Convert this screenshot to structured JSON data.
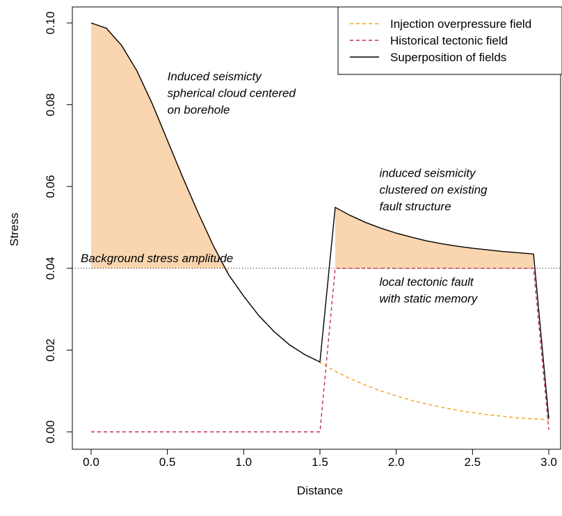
{
  "chart_data": {
    "type": "line",
    "xlabel": "Distance",
    "ylabel": "Stress",
    "xlim": [
      0,
      3
    ],
    "ylim": [
      0,
      0.1
    ],
    "x_ticks": [
      "0.0",
      "0.5",
      "1.0",
      "1.5",
      "2.0",
      "2.5",
      "3.0"
    ],
    "y_ticks": [
      "0.00",
      "0.02",
      "0.04",
      "0.06",
      "0.08",
      "0.10"
    ],
    "background_level": 0.04,
    "background_label": "Background stress amplitude",
    "series": [
      {
        "name": "Injection overpressure field",
        "color": "#F4A21C",
        "dash": true,
        "x": [
          0,
          0.1,
          0.2,
          0.3,
          0.4,
          0.5,
          0.6,
          0.7,
          0.8,
          0.9,
          1.0,
          1.1,
          1.2,
          1.3,
          1.4,
          1.5,
          1.6,
          1.7,
          1.8,
          1.9,
          2.0,
          2.1,
          2.2,
          2.3,
          2.4,
          2.5,
          2.6,
          2.7,
          2.8,
          2.9,
          3.0
        ],
        "y": [
          0.1,
          0.0987,
          0.0945,
          0.0883,
          0.0803,
          0.0713,
          0.0623,
          0.0537,
          0.0456,
          0.0385,
          0.0332,
          0.0284,
          0.0245,
          0.0213,
          0.0189,
          0.017,
          0.0148,
          0.013,
          0.0114,
          0.01,
          0.0088,
          0.0077,
          0.0068,
          0.006,
          0.0053,
          0.0047,
          0.0042,
          0.0038,
          0.0034,
          0.0032,
          0.003
        ]
      },
      {
        "name": "Historical tectonic field",
        "color": "#C0324A",
        "dash": true,
        "x": [
          0,
          1.5,
          1.6,
          2.9,
          3.0
        ],
        "y": [
          0,
          0,
          0.04,
          0.04,
          0.0005
        ]
      },
      {
        "name": "Superposition of fields",
        "color": "#000000",
        "dash": false,
        "x": [
          0,
          0.1,
          0.2,
          0.3,
          0.4,
          0.5,
          0.6,
          0.7,
          0.8,
          0.9,
          1.0,
          1.1,
          1.2,
          1.3,
          1.4,
          1.5,
          1.6,
          1.7,
          1.8,
          1.9,
          2.0,
          2.1,
          2.2,
          2.3,
          2.4,
          2.5,
          2.6,
          2.7,
          2.8,
          2.9,
          3.0
        ],
        "y": [
          0.1,
          0.0987,
          0.0945,
          0.0883,
          0.0803,
          0.0713,
          0.0623,
          0.0537,
          0.0456,
          0.0385,
          0.0332,
          0.0284,
          0.0245,
          0.0213,
          0.0189,
          0.0171,
          0.0549,
          0.0529,
          0.0512,
          0.0498,
          0.0486,
          0.0476,
          0.0467,
          0.046,
          0.0454,
          0.0449,
          0.0445,
          0.0441,
          0.0438,
          0.0435,
          0.0032
        ]
      }
    ],
    "shaded_regions": [
      {
        "color": "#F9D5B0",
        "x": [
          0,
          0.1,
          0.2,
          0.3,
          0.4,
          0.5,
          0.6,
          0.7,
          0.8,
          0.9
        ],
        "y": [
          0.1,
          0.0987,
          0.0945,
          0.0883,
          0.0803,
          0.0713,
          0.0623,
          0.0537,
          0.0456,
          0.0385
        ]
      },
      {
        "color": "#F9D5B0",
        "x": [
          1.6,
          1.7,
          1.8,
          1.9,
          2.0,
          2.1,
          2.2,
          2.3,
          2.4,
          2.5,
          2.6,
          2.7,
          2.8,
          2.9
        ],
        "y": [
          0.0549,
          0.0529,
          0.0512,
          0.0498,
          0.0486,
          0.0476,
          0.0467,
          0.046,
          0.0454,
          0.0449,
          0.0445,
          0.0441,
          0.0438,
          0.0435
        ]
      }
    ],
    "annotations": [
      {
        "lines": [
          "Induced seismicty",
          "spherical cloud centered",
          "on borehole"
        ],
        "x": 0.5,
        "y": 0.086
      },
      {
        "lines": [
          "induced seismicity",
          "clustered on existing",
          "fault structure"
        ],
        "x": 1.89,
        "y": 0.0623
      },
      {
        "lines": [
          "local tectonic fault",
          "with static memory"
        ],
        "x": 1.89,
        "y": 0.0357
      }
    ],
    "legend": {
      "position": "top-right"
    },
    "grid": false
  }
}
